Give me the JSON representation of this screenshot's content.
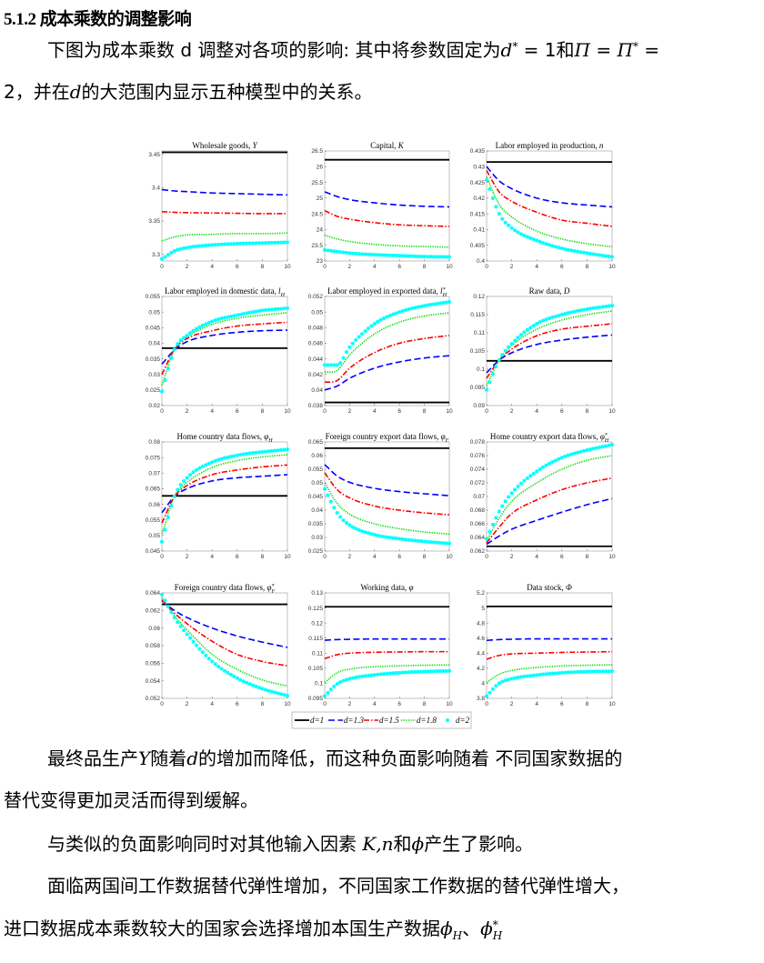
{
  "heading": "5.1.2 成本乘数的调整影响",
  "paragraphs": [
    {
      "indent": true,
      "top": 44,
      "segments": [
        {
          "t": "下图为成本乘数 d 调整对各项的影响: 其中将参数固定为"
        },
        {
          "m": "d",
          "sup": "*"
        },
        {
          "t": " = 1和"
        },
        {
          "m": "Π"
        },
        {
          "t": " = "
        },
        {
          "m": "Π",
          "sup": "*"
        },
        {
          "t": " ="
        }
      ]
    },
    {
      "indent": false,
      "top": 90,
      "segments": [
        {
          "t": "2，并在"
        },
        {
          "m": "d"
        },
        {
          "t": "的大范围内显示五种模型中的关系。"
        }
      ]
    },
    {
      "indent": true,
      "top": 823,
      "segments": [
        {
          "t": "最终品生产"
        },
        {
          "m": "Y"
        },
        {
          "t": "随着"
        },
        {
          "m": "d"
        },
        {
          "t": "的增加而降低，而这种负面影响随着 不同国家数据的"
        }
      ]
    },
    {
      "indent": false,
      "top": 869,
      "segments": [
        {
          "t": "替代变得更加灵活而得到缓解。"
        }
      ]
    },
    {
      "indent": true,
      "top": 917,
      "segments": [
        {
          "t": "与类似的负面影响同时对其他输入因素 "
        },
        {
          "m": "K,n"
        },
        {
          "t": "和"
        },
        {
          "m": "ϕ"
        },
        {
          "t": "产生了影响。"
        }
      ]
    },
    {
      "indent": true,
      "top": 963,
      "segments": [
        {
          "t": "面临两国间工作数据替代弹性增加，不同国家工作数据的替代弹性增大，"
        }
      ]
    },
    {
      "indent": false,
      "top": 1010,
      "segments": [
        {
          "t": "进口数据成本乘数较大的国家会选择增加本国生产数据"
        },
        {
          "m": "ϕ",
          "sub": "H"
        },
        {
          "t": "、"
        },
        {
          "m": "ϕ",
          "sub": "H",
          "sup": "*"
        }
      ]
    }
  ],
  "chart_data": {
    "type": "line",
    "grid": false,
    "legend": {
      "placement": "bottom-center",
      "entries": [
        "d=1",
        "d=1.3",
        "d=1.5",
        "d=1.8",
        "d=2"
      ]
    },
    "series_styles": [
      {
        "name": "d=1",
        "color": "#000000",
        "style": "solid"
      },
      {
        "name": "d=1.3",
        "color": "#0000ff",
        "style": "dashed"
      },
      {
        "name": "d=1.5",
        "color": "#ff0000",
        "style": "dash-dot"
      },
      {
        "name": "d=1.8",
        "color": "#00dd00",
        "style": "dotted"
      },
      {
        "name": "d=2",
        "color": "#00ffff",
        "style": "markers"
      }
    ],
    "x": [
      0,
      1,
      2,
      4,
      6,
      8,
      10
    ],
    "xlim": [
      0,
      10
    ],
    "xticks": [
      "0",
      "2",
      "4",
      "6",
      "8",
      "10"
    ],
    "panels": [
      {
        "title": "Wholesale goods, ",
        "math": "Y",
        "ylim": [
          3.29,
          3.455
        ],
        "yticks": [
          "3.3",
          "3.35",
          "3.4",
          "3.45"
        ],
        "series": [
          [
            3.453,
            3.453,
            3.453,
            3.453,
            3.453,
            3.453,
            3.453
          ],
          [
            3.397,
            3.395,
            3.394,
            3.392,
            3.391,
            3.39,
            3.389
          ],
          [
            3.364,
            3.363,
            3.3625,
            3.362,
            3.3615,
            3.361,
            3.361
          ],
          [
            3.32,
            3.326,
            3.329,
            3.33,
            3.331,
            3.331,
            3.332
          ],
          [
            3.293,
            3.305,
            3.31,
            3.314,
            3.316,
            3.317,
            3.318
          ]
        ]
      },
      {
        "title": "Capital, ",
        "math": "K",
        "ylim": [
          23,
          26.5
        ],
        "yticks": [
          "23",
          "23.5",
          "24",
          "24.5",
          "25",
          "25.5",
          "26",
          "26.5"
        ],
        "series": [
          [
            26.22,
            26.22,
            26.22,
            26.22,
            26.22,
            26.22,
            26.22
          ],
          [
            25.2,
            25.05,
            24.95,
            24.85,
            24.78,
            24.74,
            24.72
          ],
          [
            24.6,
            24.42,
            24.33,
            24.22,
            24.15,
            24.12,
            24.1
          ],
          [
            23.82,
            23.7,
            23.62,
            23.53,
            23.48,
            23.46,
            23.44
          ],
          [
            23.35,
            23.3,
            23.25,
            23.2,
            23.17,
            23.14,
            23.13
          ]
        ]
      },
      {
        "title": "Labor employed in production, ",
        "math": "n",
        "ylim": [
          0.4,
          0.435
        ],
        "yticks": [
          "0.4",
          "0.405",
          "0.41",
          "0.415",
          "0.42",
          "0.425",
          "0.43",
          "0.435"
        ],
        "series": [
          [
            0.4315,
            0.4315,
            0.4315,
            0.4315,
            0.4315,
            0.4315,
            0.4315
          ],
          [
            0.43,
            0.4255,
            0.423,
            0.42,
            0.4185,
            0.4178,
            0.4172
          ],
          [
            0.4288,
            0.422,
            0.419,
            0.4155,
            0.413,
            0.412,
            0.411
          ],
          [
            0.4268,
            0.418,
            0.414,
            0.4095,
            0.407,
            0.4055,
            0.4045
          ],
          [
            0.4257,
            0.415,
            0.4105,
            0.4065,
            0.404,
            0.4025,
            0.4013
          ]
        ]
      },
      {
        "title": "Labor employed in domestic data, ",
        "math": "l",
        "sub": "H",
        "ylim": [
          0.02,
          0.055
        ],
        "yticks": [
          "0.02",
          "0.025",
          "0.03",
          "0.035",
          "0.04",
          "0.045",
          "0.05",
          "0.055"
        ],
        "series": [
          [
            0.0384,
            0.0384,
            0.0384,
            0.0384,
            0.0384,
            0.0384,
            0.0384
          ],
          [
            0.0333,
            0.0378,
            0.0405,
            0.0425,
            0.0435,
            0.044,
            0.0442
          ],
          [
            0.03,
            0.038,
            0.0415,
            0.044,
            0.0455,
            0.0462,
            0.0467
          ],
          [
            0.0265,
            0.038,
            0.042,
            0.046,
            0.048,
            0.049,
            0.0498
          ],
          [
            0.0245,
            0.038,
            0.0425,
            0.047,
            0.049,
            0.0505,
            0.0512
          ]
        ]
      },
      {
        "title": "Labor employed in exported data, ",
        "math": "l",
        "sub": "H",
        "sup": "*",
        "ylim": [
          0.038,
          0.052
        ],
        "yticks": [
          "0.038",
          "0.04",
          "0.042",
          "0.044",
          "0.046",
          "0.048",
          "0.05",
          "0.052"
        ],
        "series": [
          [
            0.0384,
            0.0384,
            0.0384,
            0.0384,
            0.0384,
            0.0384,
            0.0384
          ],
          [
            0.04,
            0.0405,
            0.0415,
            0.0428,
            0.0436,
            0.0441,
            0.0444
          ],
          [
            0.041,
            0.0412,
            0.0428,
            0.0448,
            0.046,
            0.0466,
            0.047
          ],
          [
            0.0423,
            0.0425,
            0.0445,
            0.0472,
            0.0487,
            0.0495,
            0.0499
          ],
          [
            0.0432,
            0.0432,
            0.0455,
            0.0485,
            0.05,
            0.0508,
            0.0513
          ]
        ]
      },
      {
        "title": "Raw data, ",
        "math": "D",
        "ylim": [
          0.09,
          0.12
        ],
        "yticks": [
          "0.09",
          "0.095",
          "0.1",
          "0.105",
          "0.11",
          "0.115",
          "0.12"
        ],
        "series": [
          [
            0.1023,
            0.1023,
            0.1023,
            0.1023,
            0.1023,
            0.1023,
            0.1023
          ],
          [
            0.099,
            0.1025,
            0.1045,
            0.1068,
            0.108,
            0.1088,
            0.1094
          ],
          [
            0.0975,
            0.1025,
            0.1055,
            0.1092,
            0.111,
            0.1118,
            0.1125
          ],
          [
            0.0955,
            0.1025,
            0.1065,
            0.111,
            0.1135,
            0.115,
            0.116
          ],
          [
            0.0943,
            0.1025,
            0.107,
            0.1125,
            0.115,
            0.1165,
            0.1175
          ]
        ]
      },
      {
        "title": "Home country data flows, ",
        "math": "φ",
        "sub": "H",
        "ylim": [
          0.045,
          0.08
        ],
        "yticks": [
          "0.045",
          "0.05",
          "0.055",
          "0.06",
          "0.065",
          "0.07",
          "0.075",
          "0.08"
        ],
        "series": [
          [
            0.0627,
            0.0627,
            0.0627,
            0.0627,
            0.0627,
            0.0627,
            0.0627
          ],
          [
            0.0573,
            0.0625,
            0.065,
            0.0675,
            0.0685,
            0.069,
            0.0695
          ],
          [
            0.054,
            0.0625,
            0.066,
            0.0695,
            0.071,
            0.072,
            0.0726
          ],
          [
            0.0505,
            0.0625,
            0.067,
            0.0718,
            0.074,
            0.0752,
            0.0759
          ],
          [
            0.048,
            0.0625,
            0.0685,
            0.0735,
            0.0757,
            0.0768,
            0.0776
          ]
        ]
      },
      {
        "title": "Foreign country export data flows, ",
        "math": "φ",
        "sub": "F",
        "ylim": [
          0.025,
          0.065
        ],
        "yticks": [
          "0.025",
          "0.03",
          "0.035",
          "0.04",
          "0.045",
          "0.05",
          "0.055",
          "0.06",
          "0.065"
        ],
        "series": [
          [
            0.0627,
            0.0627,
            0.0627,
            0.0627,
            0.0627,
            0.0627,
            0.0627
          ],
          [
            0.0567,
            0.0525,
            0.0502,
            0.048,
            0.0468,
            0.046,
            0.0453
          ],
          [
            0.0537,
            0.0475,
            0.0445,
            0.0415,
            0.04,
            0.039,
            0.0383
          ],
          [
            0.05,
            0.0425,
            0.0385,
            0.035,
            0.0332,
            0.032,
            0.0312
          ],
          [
            0.0478,
            0.039,
            0.0345,
            0.031,
            0.0295,
            0.0285,
            0.0278
          ]
        ]
      },
      {
        "title": "Home country export data flows, ",
        "math": "φ",
        "sub": "H",
        "sup": "*",
        "ylim": [
          0.062,
          0.078
        ],
        "yticks": [
          "0.062",
          "0.064",
          "0.066",
          "0.068",
          "0.07",
          "0.072",
          "0.074",
          "0.076",
          "0.078"
        ],
        "series": [
          [
            0.0627,
            0.0627,
            0.0627,
            0.0627,
            0.0627,
            0.0627,
            0.0627
          ],
          [
            0.063,
            0.0642,
            0.0652,
            0.0665,
            0.0677,
            0.0688,
            0.0697
          ],
          [
            0.0632,
            0.0655,
            0.0675,
            0.0695,
            0.071,
            0.072,
            0.0727
          ],
          [
            0.0635,
            0.0668,
            0.0693,
            0.072,
            0.074,
            0.0753,
            0.076
          ],
          [
            0.0638,
            0.0678,
            0.0705,
            0.0737,
            0.0757,
            0.0768,
            0.0776
          ]
        ]
      },
      {
        "title": "Foreign country data flows, ",
        "math": "φ",
        "sub": "F",
        "sup": "*",
        "ylim": [
          0.052,
          0.064
        ],
        "yticks": [
          "0.052",
          "0.054",
          "0.056",
          "0.058",
          "0.06",
          "0.062",
          "0.064"
        ],
        "series": [
          [
            0.0627,
            0.0627,
            0.0627,
            0.0627,
            0.0627,
            0.0627,
            0.0627
          ],
          [
            0.0631,
            0.062,
            0.0612,
            0.06,
            0.0591,
            0.0584,
            0.0578
          ],
          [
            0.0632,
            0.0617,
            0.0605,
            0.0585,
            0.057,
            0.0562,
            0.0557
          ],
          [
            0.0635,
            0.0614,
            0.0598,
            0.057,
            0.0553,
            0.0541,
            0.0534
          ],
          [
            0.0638,
            0.0612,
            0.0593,
            0.0562,
            0.0543,
            0.0531,
            0.0523
          ]
        ]
      },
      {
        "title": "Working data, ",
        "math": "φ",
        "ylim": [
          0.095,
          0.13
        ],
        "yticks": [
          "0.095",
          "0.1",
          "0.105",
          "0.11",
          "0.115",
          "0.12",
          "0.125",
          "0.13"
        ],
        "series": [
          [
            0.1254,
            0.1254,
            0.1254,
            0.1254,
            0.1254,
            0.1254,
            0.1254
          ],
          [
            0.1143,
            0.1145,
            0.1146,
            0.1147,
            0.1147,
            0.1147,
            0.1147
          ],
          [
            0.1082,
            0.1095,
            0.11,
            0.1103,
            0.1104,
            0.1105,
            0.1105
          ],
          [
            0.1003,
            0.1035,
            0.1047,
            0.1055,
            0.1058,
            0.106,
            0.1061
          ],
          [
            0.0958,
            0.0998,
            0.1015,
            0.1028,
            0.1035,
            0.1039,
            0.1041
          ]
        ]
      },
      {
        "title": "Data stock, ",
        "math": "Φ",
        "ylim": [
          3.8,
          5.2
        ],
        "yticks": [
          "3.8",
          "4",
          "4.2",
          "4.4",
          "4.6",
          "4.8",
          "5",
          "5.2"
        ],
        "series": [
          [
            5.02,
            5.02,
            5.02,
            5.02,
            5.02,
            5.02,
            5.02
          ],
          [
            4.57,
            4.58,
            4.585,
            4.59,
            4.59,
            4.59,
            4.59
          ],
          [
            4.32,
            4.37,
            4.39,
            4.4,
            4.41,
            4.415,
            4.42
          ],
          [
            4.01,
            4.12,
            4.17,
            4.21,
            4.23,
            4.24,
            4.245
          ],
          [
            3.83,
            4.0,
            4.06,
            4.11,
            4.14,
            4.155,
            4.16
          ]
        ]
      }
    ]
  }
}
